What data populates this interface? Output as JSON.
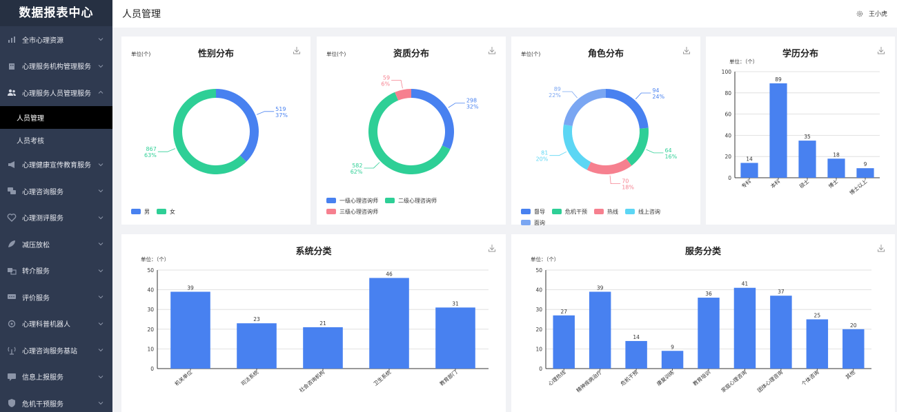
{
  "sidebar": {
    "brand": "数据报表中心",
    "items": [
      {
        "label": "全市心理资源",
        "icon": "bar-chart-icon"
      },
      {
        "label": "心理服务机构管理服务",
        "icon": "building-icon"
      },
      {
        "label": "心理服务人员管理服务",
        "icon": "users-icon",
        "open": true
      },
      {
        "label": "心理健康宣传教育服务",
        "icon": "megaphone-icon"
      },
      {
        "label": "心理咨询服务",
        "icon": "chat-icon"
      },
      {
        "label": "心理测评服务",
        "icon": "heart-pulse-icon"
      },
      {
        "label": "减压放松",
        "icon": "leaf-icon"
      },
      {
        "label": "转介服务",
        "icon": "transfer-icon"
      },
      {
        "label": "评价服务",
        "icon": "comment-icon"
      },
      {
        "label": "心理科普机器人",
        "icon": "robot-icon"
      },
      {
        "label": "心理咨询服务基站",
        "icon": "antenna-icon"
      },
      {
        "label": "信息上报服务",
        "icon": "message-icon"
      },
      {
        "label": "危机干预服务",
        "icon": "shield-icon"
      }
    ],
    "sub_items": [
      {
        "label": "人员管理",
        "active": true
      },
      {
        "label": "人员考核",
        "active": false
      }
    ]
  },
  "header": {
    "title": "人员管理",
    "user": "王小虎"
  },
  "colors": {
    "blue": "#4881f0",
    "green": "#2ecf96",
    "red": "#f6808f",
    "cyan": "#5cd6f4",
    "lightblue": "#7aa6f2",
    "sidebar_bg": "#2f3a50"
  },
  "chart_data": [
    {
      "id": "gender",
      "type": "pie",
      "title": "性别分布",
      "unit": "单位(个)",
      "slices": [
        {
          "name": "男",
          "value": 519,
          "pct": "37%",
          "color": "#4881f0"
        },
        {
          "name": "女",
          "value": 867,
          "pct": "63%",
          "color": "#2ecf96"
        }
      ]
    },
    {
      "id": "qualification",
      "type": "pie",
      "title": "资质分布",
      "unit": "单位(个)",
      "slices": [
        {
          "name": "一级心理咨询师",
          "value": 298,
          "pct": "32%",
          "color": "#4881f0"
        },
        {
          "name": "二级心理咨询师",
          "value": 582,
          "pct": "62%",
          "color": "#2ecf96"
        },
        {
          "name": "三级心理咨询师",
          "value": 59,
          "pct": "6%",
          "color": "#f6808f"
        }
      ]
    },
    {
      "id": "role",
      "type": "pie",
      "title": "角色分布",
      "unit": "单位(个)",
      "slices": [
        {
          "name": "督导",
          "value": 94,
          "pct": "24%",
          "color": "#4881f0"
        },
        {
          "name": "危机干预",
          "value": 64,
          "pct": "16%",
          "color": "#2ecf96"
        },
        {
          "name": "热线",
          "value": 70,
          "pct": "18%",
          "color": "#f6808f"
        },
        {
          "name": "线上咨询",
          "value": 81,
          "pct": "20%",
          "color": "#5cd6f4"
        },
        {
          "name": "面询",
          "value": 89,
          "pct": "22%",
          "color": "#7aa6f2"
        }
      ]
    },
    {
      "id": "education",
      "type": "bar",
      "title": "学历分布",
      "unit": "单位：（个）",
      "categories": [
        "专科",
        "本科",
        "硕士",
        "博士",
        "博士以上"
      ],
      "values": [
        14,
        89,
        35,
        18,
        9
      ],
      "ylim": [
        0,
        100
      ],
      "yticks": [
        0,
        20,
        40,
        60,
        80,
        100
      ]
    },
    {
      "id": "system",
      "type": "bar",
      "title": "系统分类",
      "unit": "单位：（个）",
      "categories": [
        "机关单位",
        "司法系统",
        "社会咨询机构",
        "卫生系统",
        "教育部门"
      ],
      "values": [
        39,
        23,
        21,
        46,
        31
      ],
      "ylim": [
        0,
        50
      ],
      "yticks": [
        0,
        10,
        20,
        30,
        40,
        50
      ]
    },
    {
      "id": "service",
      "type": "bar",
      "title": "服务分类",
      "unit": "单位：（个）",
      "categories": [
        "心理热线",
        "精神疾病治疗",
        "危机干预",
        "康复训练",
        "教育培训",
        "家庭心理咨询",
        "团体心理咨询",
        "个体咨询",
        "其他"
      ],
      "values": [
        27,
        39,
        14,
        9,
        36,
        41,
        37,
        25,
        20
      ],
      "ylim": [
        0,
        50
      ],
      "yticks": [
        0,
        10,
        20,
        30,
        40,
        50
      ]
    }
  ]
}
